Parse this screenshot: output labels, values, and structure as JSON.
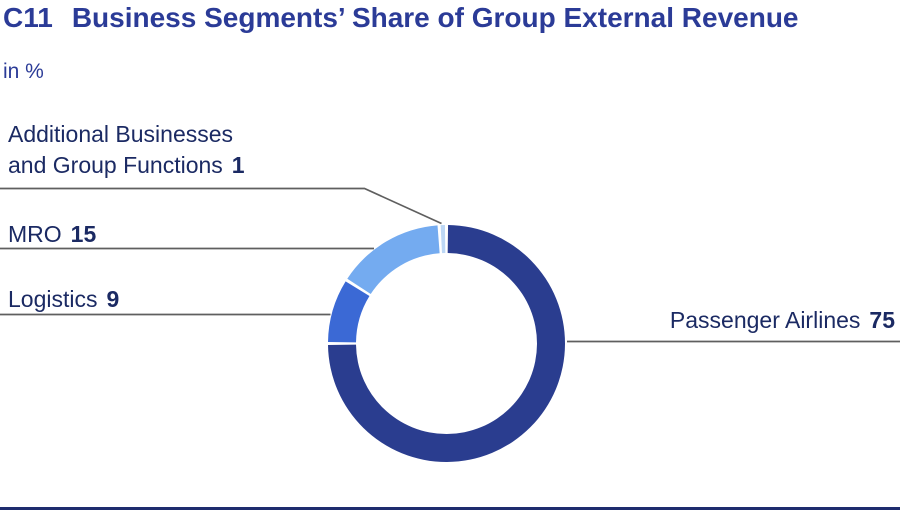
{
  "header": {
    "tag": "C11",
    "title": "Business Segments’ Share of Group External Revenue",
    "unit_label": "in %"
  },
  "colors": {
    "title": "#2B3B97",
    "label": "#1B2A63",
    "leader_line": "#5F5F5F",
    "bottom_rule": "#1E2C6E",
    "background": "#FFFFFF"
  },
  "chart_data": {
    "type": "pie",
    "subtype": "donut",
    "title": "C11 Business Segments’ Share of Group External Revenue",
    "unit": "in %",
    "start_angle_deg": 0,
    "direction": "clockwise",
    "legend_position": "callouts",
    "segments": [
      {
        "label": "Passenger Airlines",
        "value": 75,
        "color": "#2A3D8F"
      },
      {
        "label": "Logistics",
        "value": 9,
        "color": "#3B69D5"
      },
      {
        "label": "MRO",
        "value": 15,
        "color": "#74ABF0"
      },
      {
        "label": "Additional Businesses and Group Functions",
        "value": 1,
        "color": "#BCD7F5",
        "label_line1": "Additional Businesses",
        "label_line2": "and Group Functions"
      }
    ]
  }
}
